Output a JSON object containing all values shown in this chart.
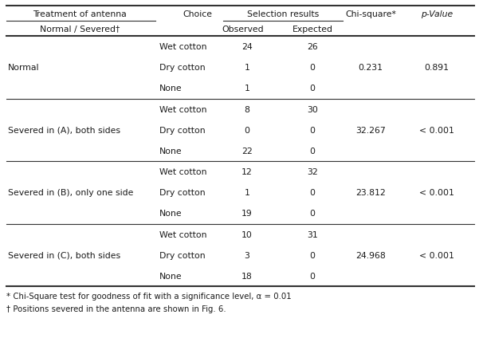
{
  "title_row1": "Treatment of antenna",
  "title_col2": "Choice",
  "title_selection": "Selection results",
  "title_chisq": "Chi-square*",
  "title_pvalue": "p-Value",
  "header_row2_col1": "Normal / Severed†",
  "header_observed": "Observed",
  "header_expected": "Expected",
  "groups": [
    {
      "treatment": "Normal",
      "rows": [
        {
          "choice": "Wet cotton",
          "observed": "24",
          "expected": "26"
        },
        {
          "choice": "Dry cotton",
          "observed": "1",
          "expected": "0"
        },
        {
          "choice": "None",
          "observed": "1",
          "expected": "0"
        }
      ],
      "chisq": "0.231",
      "pvalue": "0.891"
    },
    {
      "treatment": "Severed in (A), both sides",
      "rows": [
        {
          "choice": "Wet cotton",
          "observed": "8",
          "expected": "30"
        },
        {
          "choice": "Dry cotton",
          "observed": "0",
          "expected": "0"
        },
        {
          "choice": "None",
          "observed": "22",
          "expected": "0"
        }
      ],
      "chisq": "32.267",
      "pvalue": "< 0.001"
    },
    {
      "treatment": "Severed in (B), only one side",
      "rows": [
        {
          "choice": "Wet cotton",
          "observed": "12",
          "expected": "32"
        },
        {
          "choice": "Dry cotton",
          "observed": "1",
          "expected": "0"
        },
        {
          "choice": "None",
          "observed": "19",
          "expected": "0"
        }
      ],
      "chisq": "23.812",
      "pvalue": "< 0.001"
    },
    {
      "treatment": "Severed in (C), both sides",
      "rows": [
        {
          "choice": "Wet cotton",
          "observed": "10",
          "expected": "31"
        },
        {
          "choice": "Dry cotton",
          "observed": "3",
          "expected": "0"
        },
        {
          "choice": "None",
          "observed": "18",
          "expected": "0"
        }
      ],
      "chisq": "24.968",
      "pvalue": "< 0.001"
    }
  ],
  "footnote1": "* Chi-Square test for goodness of fit with a significance level, α = 0.01",
  "footnote2": "† Positions severed in the antenna are shown in Fig. 6.",
  "bg_color": "#ffffff",
  "text_color": "#1a1a1a",
  "line_color": "#333333",
  "font_size": 7.8
}
